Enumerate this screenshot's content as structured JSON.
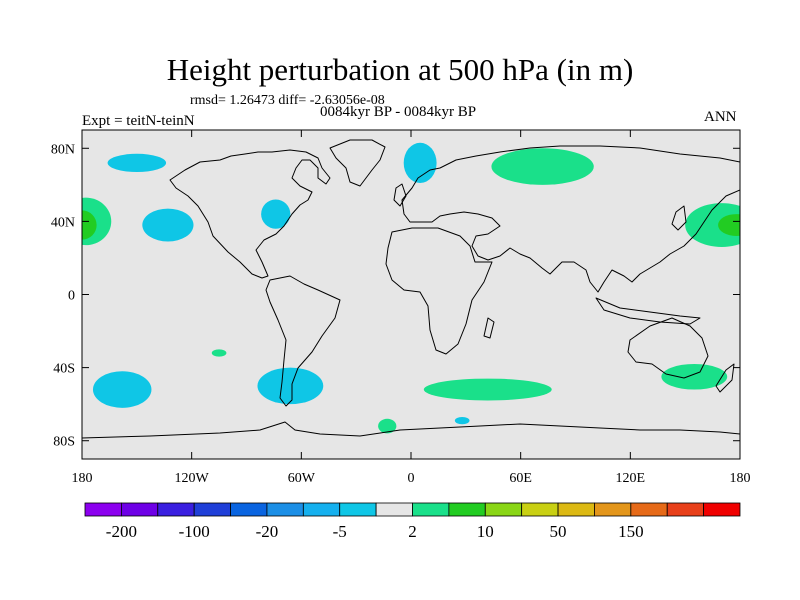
{
  "chart_data": {
    "type": "heatmap",
    "title": "Height perturbation at 500 hPa (in m)",
    "stats_text": "rmsd= 1.26473 diff= -2.63056e-08",
    "period_text": "0084kyr BP - 0084kyr BP",
    "experiment_text": "Expt = teitN-teinN",
    "season_text": "ANN",
    "projection": "cylindrical-equidistant",
    "x_range": [
      -180,
      180
    ],
    "y_range": [
      -90,
      90
    ],
    "x_ticks": [
      {
        "value": -180,
        "label": "180"
      },
      {
        "value": -120,
        "label": "120W"
      },
      {
        "value": -60,
        "label": "60W"
      },
      {
        "value": 0,
        "label": "0"
      },
      {
        "value": 60,
        "label": "60E"
      },
      {
        "value": 120,
        "label": "120E"
      },
      {
        "value": 180,
        "label": "180"
      }
    ],
    "y_ticks": [
      {
        "value": 80,
        "label": "80N"
      },
      {
        "value": 40,
        "label": "40N"
      },
      {
        "value": 0,
        "label": "0"
      },
      {
        "value": -40,
        "label": "40S"
      },
      {
        "value": -80,
        "label": "80S"
      }
    ],
    "colorbar": {
      "colors": [
        "#8c00ef",
        "#6e00e6",
        "#3a1fe0",
        "#1f3fd8",
        "#0a64e0",
        "#1c8fe6",
        "#15b0ee",
        "#0fc6e6",
        "#e6e6e6",
        "#1ae08a",
        "#22cc22",
        "#8ad616",
        "#c9d013",
        "#dcb913",
        "#e3961b",
        "#e66a18",
        "#e8401a",
        "#f00000"
      ],
      "labels": [
        {
          "boundary": 1,
          "text": "-200"
        },
        {
          "boundary": 3,
          "text": "-100"
        },
        {
          "boundary": 5,
          "text": "-20"
        },
        {
          "boundary": 7,
          "text": "-5"
        },
        {
          "boundary": 9,
          "text": "2"
        },
        {
          "boundary": 11,
          "text": "10"
        },
        {
          "boundary": 13,
          "text": "50"
        },
        {
          "boundary": 15,
          "text": "150"
        }
      ]
    },
    "anomaly_regions": [
      {
        "name": "n-pacific-east-positive",
        "lon": -178,
        "lat": 40,
        "rx": 14,
        "ry": 13,
        "color": "#1ae08a"
      },
      {
        "name": "n-pacific-east-core",
        "lon": -180,
        "lat": 38,
        "rx": 8,
        "ry": 8,
        "color": "#22cc22"
      },
      {
        "name": "n-pacific-west-positive",
        "lon": 170,
        "lat": 38,
        "rx": 20,
        "ry": 12,
        "color": "#1ae08a"
      },
      {
        "name": "n-pacific-west-core",
        "lon": 178,
        "lat": 38,
        "rx": 10,
        "ry": 6,
        "color": "#22cc22"
      },
      {
        "name": "arctic-alaska-negative",
        "lon": -150,
        "lat": 72,
        "rx": 16,
        "ry": 5,
        "color": "#0fc6e6"
      },
      {
        "name": "ne-pacific-negative",
        "lon": -133,
        "lat": 38,
        "rx": 14,
        "ry": 9,
        "color": "#0fc6e6"
      },
      {
        "name": "east-us-negative",
        "lon": -74,
        "lat": 44,
        "rx": 8,
        "ry": 8,
        "color": "#0fc6e6"
      },
      {
        "name": "scandinavia-negative",
        "lon": 5,
        "lat": 72,
        "rx": 9,
        "ry": 11,
        "color": "#0fc6e6"
      },
      {
        "name": "siberia-positive",
        "lon": 72,
        "lat": 70,
        "rx": 28,
        "ry": 10,
        "color": "#1ae08a"
      },
      {
        "name": "s-pacific-east-negative",
        "lon": -158,
        "lat": -52,
        "rx": 16,
        "ry": 10,
        "color": "#0fc6e6"
      },
      {
        "name": "south-america-negative",
        "lon": -66,
        "lat": -50,
        "rx": 18,
        "ry": 10,
        "color": "#0fc6e6"
      },
      {
        "name": "s-pacific-small-positive",
        "lon": -105,
        "lat": -32,
        "rx": 4,
        "ry": 2,
        "color": "#1ae08a"
      },
      {
        "name": "s-indian-positive",
        "lon": 42,
        "lat": -52,
        "rx": 35,
        "ry": 6,
        "color": "#1ae08a"
      },
      {
        "name": "s-australia-positive",
        "lon": 155,
        "lat": -45,
        "rx": 18,
        "ry": 7,
        "color": "#1ae08a"
      },
      {
        "name": "antarctic-atlantic-positive",
        "lon": -13,
        "lat": -72,
        "rx": 5,
        "ry": 4,
        "color": "#1ae08a"
      },
      {
        "name": "antarctic-indian-negative",
        "lon": 28,
        "lat": -69,
        "rx": 4,
        "ry": 2,
        "color": "#0fc6e6"
      }
    ]
  }
}
